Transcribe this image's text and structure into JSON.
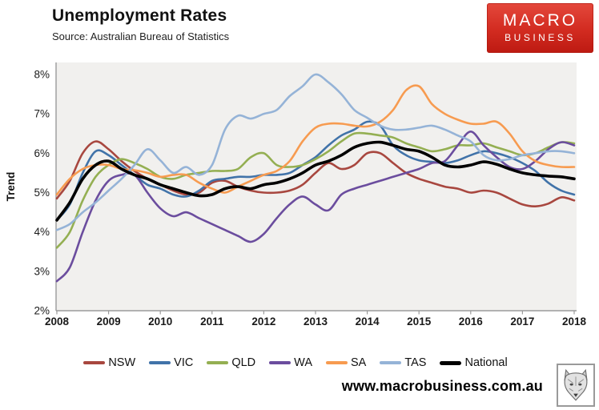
{
  "header": {
    "title": "Unemployment Rates",
    "source": "Source: Australian Bureau of Statistics"
  },
  "logo": {
    "line1": "MACRO",
    "line2": "BUSINESS",
    "bg_color": "#d22b20"
  },
  "footer": {
    "url": "www.macrobusiness.com.au"
  },
  "chart_data": {
    "type": "line",
    "title": "Unemployment Rates",
    "subtitle": "Source: Australian Bureau of Statistics",
    "xlabel": "",
    "ylabel": "Trend",
    "xlim": [
      2008,
      2018
    ],
    "ylim": [
      2,
      8
    ],
    "x_ticks": [
      2008,
      2009,
      2010,
      2011,
      2012,
      2013,
      2014,
      2015,
      2016,
      2017,
      2018
    ],
    "y_ticks": [
      2,
      3,
      4,
      5,
      6,
      7,
      8
    ],
    "y_tick_suffix": "%",
    "grid": false,
    "plot_bg": "#f1f0ee",
    "axis_color": "#9b9b9b",
    "tick_label_color": "#1a1a1a",
    "legend_position": "bottom",
    "x_step": 0.25,
    "x_start": 2008,
    "series": [
      {
        "name": "NSW",
        "color": "#A8473F",
        "width": 2.6,
        "values": [
          4.85,
          5.3,
          6.0,
          6.3,
          6.1,
          5.8,
          5.55,
          5.35,
          5.2,
          5.05,
          4.95,
          5.0,
          5.25,
          5.3,
          5.15,
          5.05,
          5.0,
          5.0,
          5.05,
          5.2,
          5.5,
          5.75,
          5.6,
          5.7,
          6.0,
          6.0,
          5.75,
          5.5,
          5.35,
          5.25,
          5.15,
          5.1,
          5.0,
          5.05,
          5.0,
          4.85,
          4.7,
          4.65,
          4.72,
          4.88,
          4.8
        ]
      },
      {
        "name": "VIC",
        "color": "#4173A9",
        "width": 2.6,
        "values": [
          4.3,
          4.7,
          5.5,
          6.05,
          5.95,
          5.7,
          5.45,
          5.2,
          5.1,
          4.95,
          4.9,
          5.05,
          5.3,
          5.35,
          5.4,
          5.4,
          5.45,
          5.45,
          5.5,
          5.7,
          5.9,
          6.2,
          6.45,
          6.6,
          6.8,
          6.7,
          6.2,
          5.95,
          5.82,
          5.78,
          5.75,
          5.82,
          5.95,
          6.05,
          6.0,
          5.9,
          5.75,
          5.55,
          5.25,
          5.05,
          4.95
        ]
      },
      {
        "name": "QLD",
        "color": "#94AF52",
        "width": 2.6,
        "values": [
          3.6,
          4.0,
          4.8,
          5.4,
          5.7,
          5.85,
          5.75,
          5.6,
          5.4,
          5.35,
          5.45,
          5.5,
          5.55,
          5.55,
          5.6,
          5.9,
          6.0,
          5.7,
          5.65,
          5.7,
          5.85,
          6.05,
          6.3,
          6.5,
          6.5,
          6.45,
          6.4,
          6.25,
          6.15,
          6.05,
          6.1,
          6.2,
          6.2,
          6.25,
          6.15,
          6.05,
          5.95,
          6.0,
          6.15,
          6.28,
          6.25
        ]
      },
      {
        "name": "WA",
        "color": "#6B4D9E",
        "width": 2.6,
        "values": [
          2.75,
          3.1,
          4.0,
          4.8,
          5.3,
          5.45,
          5.45,
          5.0,
          4.6,
          4.4,
          4.5,
          4.35,
          4.2,
          4.05,
          3.9,
          3.75,
          3.95,
          4.35,
          4.7,
          4.9,
          4.7,
          4.55,
          4.95,
          5.1,
          5.2,
          5.3,
          5.4,
          5.5,
          5.6,
          5.75,
          5.8,
          6.2,
          6.55,
          6.2,
          5.9,
          5.65,
          5.6,
          5.8,
          6.1,
          6.28,
          6.2
        ]
      },
      {
        "name": "SA",
        "color": "#F79B50",
        "width": 2.6,
        "values": [
          4.95,
          5.35,
          5.6,
          5.7,
          5.7,
          5.6,
          5.57,
          5.5,
          5.4,
          5.45,
          5.45,
          5.25,
          5.1,
          5.0,
          5.15,
          5.3,
          5.45,
          5.55,
          5.8,
          6.3,
          6.65,
          6.75,
          6.75,
          6.7,
          6.68,
          6.8,
          7.1,
          7.6,
          7.7,
          7.25,
          7.0,
          6.85,
          6.75,
          6.75,
          6.8,
          6.5,
          6.05,
          5.8,
          5.7,
          5.65,
          5.65
        ]
      },
      {
        "name": "TAS",
        "color": "#95B3D7",
        "width": 2.6,
        "values": [
          4.05,
          4.2,
          4.5,
          4.75,
          5.05,
          5.35,
          5.7,
          6.1,
          5.82,
          5.5,
          5.65,
          5.45,
          5.7,
          6.6,
          6.95,
          6.88,
          7.0,
          7.1,
          7.45,
          7.7,
          8.0,
          7.8,
          7.5,
          7.1,
          6.9,
          6.7,
          6.6,
          6.6,
          6.65,
          6.7,
          6.6,
          6.45,
          6.3,
          5.95,
          5.82,
          5.85,
          5.95,
          6.0,
          6.05,
          6.05,
          6.0
        ]
      },
      {
        "name": "National",
        "color": "#000000",
        "width": 3.6,
        "values": [
          4.3,
          4.75,
          5.35,
          5.7,
          5.8,
          5.6,
          5.45,
          5.35,
          5.2,
          5.1,
          5.0,
          4.92,
          4.95,
          5.1,
          5.15,
          5.1,
          5.2,
          5.25,
          5.35,
          5.5,
          5.7,
          5.8,
          5.95,
          6.15,
          6.25,
          6.28,
          6.2,
          6.1,
          6.05,
          5.9,
          5.7,
          5.65,
          5.7,
          5.78,
          5.72,
          5.6,
          5.5,
          5.45,
          5.42,
          5.4,
          5.35
        ]
      }
    ]
  }
}
